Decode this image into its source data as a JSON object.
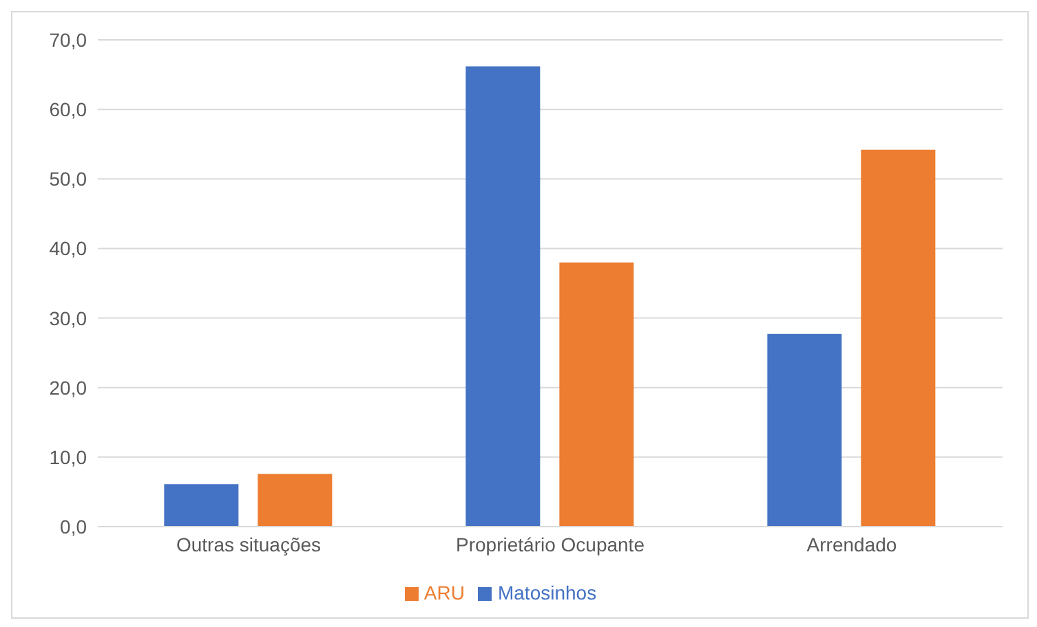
{
  "chart_data": {
    "type": "bar",
    "categories": [
      "Outras situações",
      "Proprietário Ocupante",
      "Arrendado"
    ],
    "series": [
      {
        "name": "Matosinhos",
        "color": "#4472c4",
        "values": [
          6.1,
          66.2,
          27.7
        ]
      },
      {
        "name": "ARU",
        "color": "#ed7d31",
        "values": [
          7.6,
          38.0,
          54.2
        ]
      }
    ],
    "ylim": [
      0,
      70
    ],
    "yticks": [
      {
        "value": 0,
        "label": "0,0"
      },
      {
        "value": 10,
        "label": "10,0"
      },
      {
        "value": 20,
        "label": "20,0"
      },
      {
        "value": 30,
        "label": "30,0"
      },
      {
        "value": 40,
        "label": "40,0"
      },
      {
        "value": 50,
        "label": "50,0"
      },
      {
        "value": 60,
        "label": "60,0"
      },
      {
        "value": 70,
        "label": "70,0"
      }
    ],
    "grid": "y",
    "legend": "bottom"
  }
}
